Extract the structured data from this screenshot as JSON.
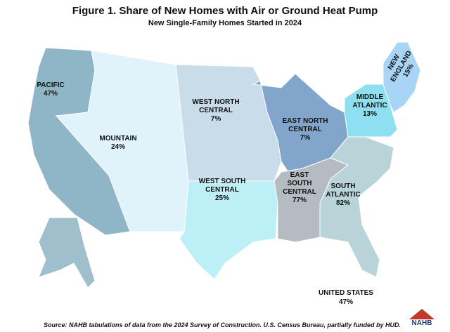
{
  "header": {
    "title": "Figure 1. Share of New Homes with Air or Ground Heat Pump",
    "subtitle": "New Single-Family Homes Started in 2024"
  },
  "regions": [
    {
      "name_lines": [
        "PACIFIC"
      ],
      "share": "47%"
    },
    {
      "name_lines": [
        "MOUNTAIN"
      ],
      "share": "24%"
    },
    {
      "name_lines": [
        "WEST NORTH",
        "CENTRAL"
      ],
      "share": "7%"
    },
    {
      "name_lines": [
        "EAST NORTH",
        "CENTRAL"
      ],
      "share": "7%"
    },
    {
      "name_lines": [
        "WEST SOUTH",
        "CENTRAL"
      ],
      "share": "25%"
    },
    {
      "name_lines": [
        "EAST",
        "SOUTH",
        "CENTRAL"
      ],
      "share": "77%"
    },
    {
      "name_lines": [
        "SOUTH",
        "ATLANTIC"
      ],
      "share": "82%"
    },
    {
      "name_lines": [
        "MIDDLE",
        "ATLANTIC"
      ],
      "share": "13%"
    },
    {
      "name_lines": [
        "NEW",
        "ENGLAND"
      ],
      "share": "15%"
    }
  ],
  "total": {
    "name": "UNITED STATES",
    "share": "47%"
  },
  "source": "Source: NAHB tabulations of data from the 2024 Survey of Construction. U.S. Census Bureau, partially funded by HUD.",
  "logo": "NAHB"
}
